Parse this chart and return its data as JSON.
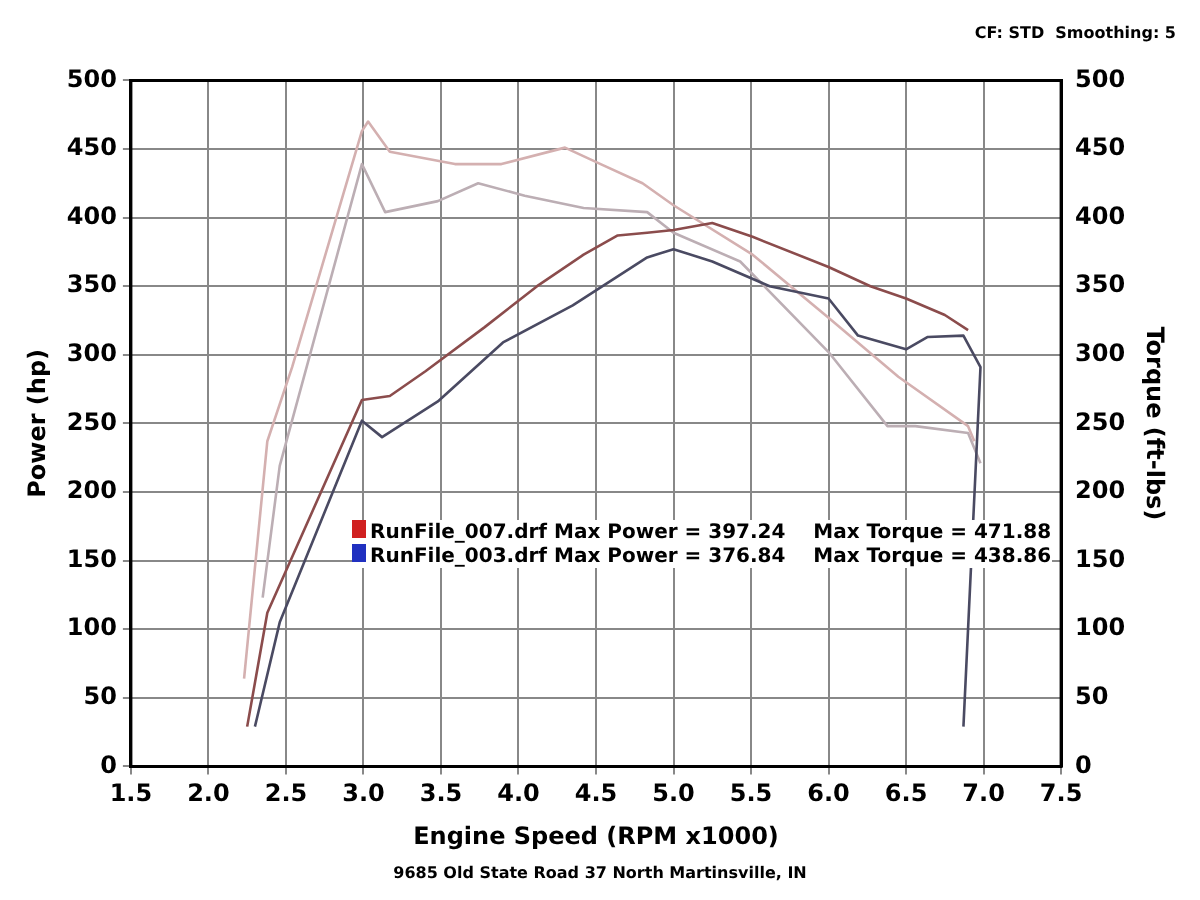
{
  "chart_data": {
    "type": "line",
    "xlabel": "Engine Speed (RPM x1000)",
    "ylabel": "Power (hp)",
    "y2label": "Torque (ft-lbs)",
    "annotations": [
      "CF: STD  Smoothing: 5",
      "RunFile_007.drf Max Power = 397.24    Max Torque = 471.88",
      "RunFile_003.drf Max Power = 376.84    Max Torque = 438.86",
      "9685 Old State Road 37 North Martinsville, IN"
    ],
    "xlim": [
      1.5,
      7.5
    ],
    "xticks": [
      1.5,
      {
        "value": 2,
        "label": "2.0"
      },
      2.5,
      {
        "value": 3,
        "label": "3.0"
      },
      3.5,
      {
        "value": 4,
        "label": "4.0"
      },
      4.5,
      {
        "value": 5,
        "label": "5.0"
      },
      5.5,
      {
        "value": 6,
        "label": "6.0"
      },
      6.5,
      {
        "value": 7,
        "label": "7.0"
      },
      7.5
    ],
    "ylim": [
      0,
      500
    ],
    "yticks": [
      0,
      50,
      100,
      150,
      200,
      250,
      300,
      350,
      400,
      450,
      500
    ],
    "y2lim": [
      0,
      500
    ],
    "y2ticks": [
      0,
      50,
      100,
      150,
      200,
      250,
      300,
      350,
      400,
      450,
      500
    ],
    "grid": true,
    "marker": "none",
    "series": [
      {
        "color": "#8b4c4c",
        "x": [
          2.25,
          2.38,
          2.99,
          3.17,
          3.4,
          3.78,
          4.12,
          4.42,
          4.64,
          4.83,
          5.0,
          5.25,
          5.51,
          6.0,
          6.27,
          6.5,
          6.75,
          6.9
        ],
        "values": [
          29,
          112,
          267,
          270,
          288,
          320,
          350,
          373,
          387,
          389,
          391,
          396,
          386,
          364,
          350,
          341,
          329,
          318
        ]
      },
      {
        "color": "#4a4a62",
        "x": [
          2.3,
          2.46,
          2.99,
          3.12,
          3.48,
          3.9,
          4.35,
          4.83,
          5.0,
          5.25,
          5.62,
          6.0,
          6.19,
          6.5,
          6.64,
          6.87,
          6.98,
          6.87
        ],
        "values": [
          29,
          105,
          252,
          240,
          266,
          309,
          336,
          371,
          377,
          368,
          350,
          341,
          314,
          304,
          313,
          314,
          291,
          29
        ]
      },
      {
        "color": "#d4b0b0",
        "x": [
          2.23,
          2.38,
          2.54,
          2.99,
          3.03,
          3.17,
          3.59,
          3.89,
          4.3,
          4.53,
          4.8,
          5.0,
          5.51,
          6.0,
          6.45,
          6.9,
          6.94
        ],
        "values": [
          64,
          237,
          291,
          463,
          470,
          448,
          439,
          439,
          451,
          439,
          425,
          409,
          373,
          327,
          284,
          248,
          237
        ]
      },
      {
        "color": "#bcaeb4",
        "x": [
          2.35,
          2.46,
          2.99,
          3.14,
          3.48,
          3.74,
          4.04,
          4.42,
          4.83,
          5.0,
          5.43,
          6.0,
          6.38,
          6.56,
          6.9,
          6.98
        ],
        "values": [
          123,
          219,
          439,
          404,
          412,
          425,
          416,
          407,
          404,
          389,
          368,
          302,
          248,
          248,
          243,
          221
        ]
      }
    ]
  }
}
